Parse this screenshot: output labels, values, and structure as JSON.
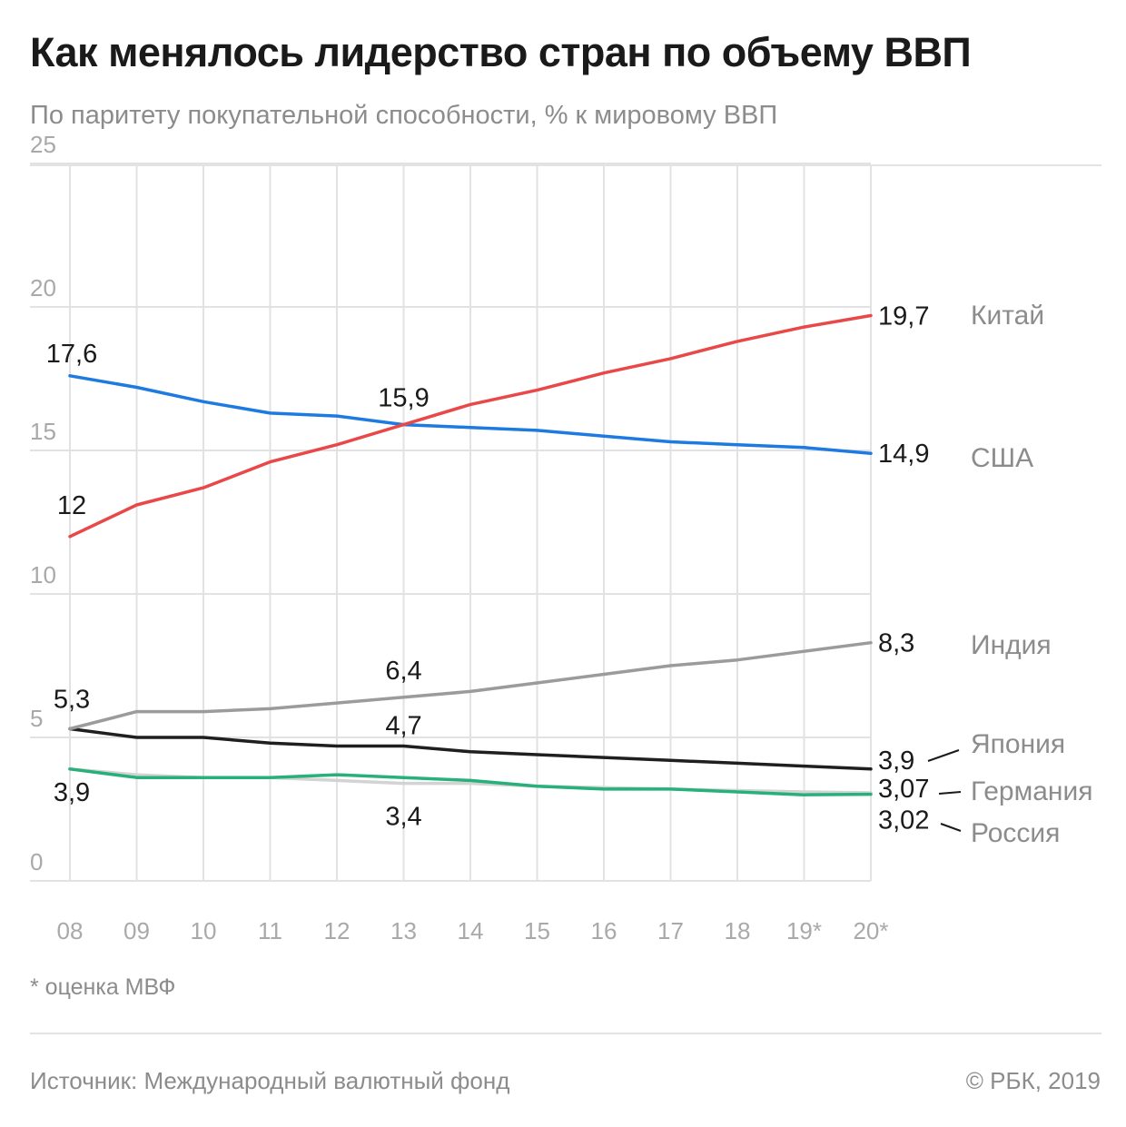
{
  "header": {
    "title": "Как менялось лидерство стран по объему ВВП",
    "subtitle": "По паритету покупательной способности, % к мировому ВВП"
  },
  "footer": {
    "note": "* оценка МВФ",
    "source": "Источник: Международный валютный фонд",
    "credit": "© РБК, 2019"
  },
  "chart_data": {
    "type": "line",
    "title": "Как менялось лидерство стран по объему ВВП",
    "subtitle": "По паритету покупательной способности, % к мировому ВВП",
    "x": [
      "08",
      "09",
      "10",
      "11",
      "12",
      "13",
      "14",
      "15",
      "16",
      "17",
      "18",
      "19*",
      "20*"
    ],
    "ylim": [
      0,
      25
    ],
    "yticks": [
      0,
      5,
      10,
      15,
      20,
      25
    ],
    "grid": true,
    "legend": "right",
    "series": [
      {
        "name": "Китай",
        "color": "#e84848",
        "values": [
          12.0,
          13.1,
          13.7,
          14.6,
          15.2,
          15.9,
          16.6,
          17.1,
          17.7,
          18.2,
          18.8,
          19.3,
          19.7
        ]
      },
      {
        "name": "США",
        "color": "#1c7ae0",
        "values": [
          17.6,
          17.2,
          16.7,
          16.3,
          16.2,
          15.9,
          15.8,
          15.7,
          15.5,
          15.3,
          15.2,
          15.1,
          14.9
        ]
      },
      {
        "name": "Индия",
        "color": "#9b9b9b",
        "values": [
          5.3,
          5.9,
          5.9,
          6.0,
          6.2,
          6.4,
          6.6,
          6.9,
          7.2,
          7.5,
          7.7,
          8.0,
          8.3
        ]
      },
      {
        "name": "Япония",
        "color": "#1f1f1f",
        "values": [
          5.3,
          5.0,
          5.0,
          4.8,
          4.7,
          4.7,
          4.5,
          4.4,
          4.3,
          4.2,
          4.1,
          4.0,
          3.9
        ]
      },
      {
        "name": "Германия",
        "color": "#d3d3d3",
        "values": [
          3.9,
          3.7,
          3.6,
          3.6,
          3.5,
          3.4,
          3.4,
          3.3,
          3.25,
          3.2,
          3.15,
          3.1,
          3.07
        ]
      },
      {
        "name": "Россия",
        "color": "#27b07a",
        "values": [
          3.9,
          3.6,
          3.6,
          3.6,
          3.7,
          3.6,
          3.5,
          3.3,
          3.2,
          3.2,
          3.1,
          3.0,
          3.02
        ]
      }
    ],
    "data_labels": [
      {
        "text": "17,6",
        "series": "США",
        "index": 0
      },
      {
        "text": "12",
        "series": "Китай",
        "index": 0
      },
      {
        "text": "15,9",
        "series": "Китай",
        "index": 5
      },
      {
        "text": "19,7",
        "series": "Китай",
        "index": 12
      },
      {
        "text": "14,9",
        "series": "США",
        "index": 12
      },
      {
        "text": "5,3",
        "series": "Япония",
        "index": 0
      },
      {
        "text": "6,4",
        "series": "Индия",
        "index": 5
      },
      {
        "text": "4,7",
        "series": "Япония",
        "index": 5
      },
      {
        "text": "3,9",
        "series": "Германия",
        "index": 0
      },
      {
        "text": "3,4",
        "series": "Германия",
        "index": 5
      },
      {
        "text": "8,3",
        "series": "Индия",
        "index": 12
      },
      {
        "text": "3,9",
        "series": "Япония",
        "index": 12
      },
      {
        "text": "3,07",
        "series": "Германия",
        "index": 12
      },
      {
        "text": "3,02",
        "series": "Россия",
        "index": 12
      }
    ]
  }
}
